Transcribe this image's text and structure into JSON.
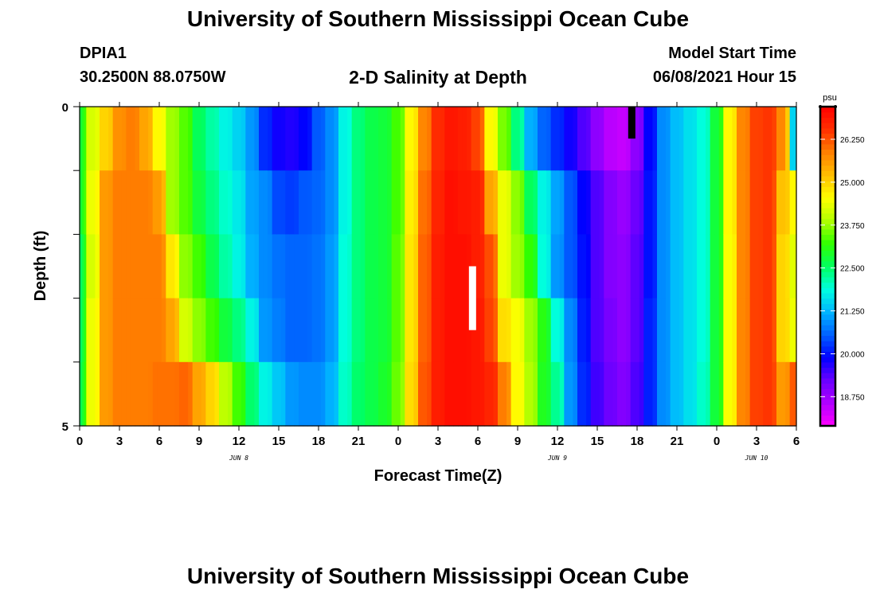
{
  "header": {
    "title": "University of Southern Mississippi Ocean Cube",
    "station": "DPIA1",
    "coords": "30.2500N  88.0750W",
    "chart_title": "2-D Salinity at Depth",
    "model_label": "Model Start Time",
    "model_date": "06/08/2021 Hour 15"
  },
  "footer": {
    "title": "University of Southern Mississippi Ocean Cube"
  },
  "colors": {
    "colormap": [
      "#ff00ff",
      "#b200ff",
      "#6a00ff",
      "#0000ff",
      "#0060ff",
      "#00b4ff",
      "#00ffe0",
      "#00ff60",
      "#30ff00",
      "#b0ff00",
      "#ffff00",
      "#ffc000",
      "#ff8000",
      "#ff3000",
      "#ff0000"
    ],
    "missing_marker": "#ffffff",
    "missing_marker_top": "#000000"
  },
  "chart_data": {
    "type": "heatmap",
    "title": "2-D Salinity at Depth",
    "xlabel": "Forecast Time(Z)",
    "ylabel": "Depth (ft)",
    "x_range": [
      0,
      54
    ],
    "y_range": [
      0,
      5
    ],
    "x_ticks": [
      {
        "pos": 0,
        "label": "0"
      },
      {
        "pos": 3,
        "label": "3"
      },
      {
        "pos": 6,
        "label": "6"
      },
      {
        "pos": 9,
        "label": "9"
      },
      {
        "pos": 12,
        "label": "12"
      },
      {
        "pos": 15,
        "label": "15"
      },
      {
        "pos": 18,
        "label": "18"
      },
      {
        "pos": 21,
        "label": "21"
      },
      {
        "pos": 24,
        "label": "0"
      },
      {
        "pos": 27,
        "label": "3"
      },
      {
        "pos": 30,
        "label": "6"
      },
      {
        "pos": 33,
        "label": "9"
      },
      {
        "pos": 36,
        "label": "12"
      },
      {
        "pos": 39,
        "label": "15"
      },
      {
        "pos": 42,
        "label": "18"
      },
      {
        "pos": 45,
        "label": "21"
      },
      {
        "pos": 48,
        "label": "0"
      },
      {
        "pos": 51,
        "label": "3"
      },
      {
        "pos": 54,
        "label": "6"
      }
    ],
    "date_labels": [
      {
        "pos": 12,
        "label": "JUN 8"
      },
      {
        "pos": 36,
        "label": "JUN 9"
      },
      {
        "pos": 51,
        "label": "JUN 10"
      }
    ],
    "y_ticks": [
      {
        "pos": 0,
        "label": "0"
      },
      {
        "pos": 5,
        "label": "5"
      }
    ],
    "depth_levels": 5,
    "colorbar": {
      "unit": "psu",
      "range": [
        17.9,
        27.2
      ],
      "labels": [
        "26.250",
        "25.000",
        "23.750",
        "22.500",
        "21.250",
        "20.000",
        "18.750"
      ]
    },
    "profiles": [
      {
        "t": 0,
        "v": [
          22.8,
          22.8,
          22.5,
          22.5,
          22.6
        ]
      },
      {
        "t": 1,
        "v": [
          24.2,
          24.4,
          24.2,
          24.4,
          24.4
        ]
      },
      {
        "t": 2,
        "v": [
          25.0,
          25.6,
          25.6,
          25.6,
          25.6
        ]
      },
      {
        "t": 3,
        "v": [
          25.7,
          25.9,
          25.9,
          25.9,
          25.9
        ]
      },
      {
        "t": 4,
        "v": [
          25.9,
          25.9,
          25.9,
          25.9,
          25.9
        ]
      },
      {
        "t": 5,
        "v": [
          25.5,
          25.9,
          25.9,
          25.9,
          25.9
        ]
      },
      {
        "t": 6,
        "v": [
          24.6,
          25.6,
          25.9,
          25.9,
          26.0
        ]
      },
      {
        "t": 7,
        "v": [
          23.8,
          23.8,
          24.8,
          25.5,
          26.0
        ]
      },
      {
        "t": 8,
        "v": [
          23.4,
          23.4,
          23.7,
          24.2,
          26.1
        ]
      },
      {
        "t": 9,
        "v": [
          22.6,
          22.8,
          23.3,
          23.7,
          25.5
        ]
      },
      {
        "t": 10,
        "v": [
          22.2,
          22.4,
          22.7,
          23.3,
          25.0
        ]
      },
      {
        "t": 11,
        "v": [
          21.8,
          22.0,
          22.2,
          22.8,
          24.0
        ]
      },
      {
        "t": 12,
        "v": [
          21.5,
          21.7,
          21.8,
          22.4,
          23.3
        ]
      },
      {
        "t": 13,
        "v": [
          21.0,
          21.1,
          21.2,
          21.8,
          22.5
        ]
      },
      {
        "t": 14,
        "v": [
          20.2,
          20.9,
          20.9,
          21.0,
          21.8
        ]
      },
      {
        "t": 15,
        "v": [
          19.8,
          20.4,
          20.7,
          20.8,
          21.4
        ]
      },
      {
        "t": 16,
        "v": [
          19.7,
          20.3,
          20.6,
          20.6,
          21.0
        ]
      },
      {
        "t": 17,
        "v": [
          19.9,
          20.5,
          20.6,
          20.6,
          20.9
        ]
      },
      {
        "t": 18,
        "v": [
          20.5,
          20.6,
          20.7,
          20.7,
          20.9
        ]
      },
      {
        "t": 19,
        "v": [
          20.9,
          20.9,
          21.0,
          21.0,
          21.2
        ]
      },
      {
        "t": 20,
        "v": [
          21.8,
          21.8,
          21.9,
          21.9,
          22.0
        ]
      },
      {
        "t": 21,
        "v": [
          22.4,
          22.4,
          22.4,
          22.4,
          22.5
        ]
      },
      {
        "t": 22,
        "v": [
          22.7,
          22.7,
          22.7,
          22.7,
          22.7
        ]
      },
      {
        "t": 23,
        "v": [
          22.8,
          22.8,
          22.8,
          22.8,
          22.9
        ]
      },
      {
        "t": 24,
        "v": [
          23.3,
          23.3,
          23.4,
          23.4,
          23.5
        ]
      },
      {
        "t": 25,
        "v": [
          24.6,
          24.7,
          24.8,
          24.8,
          24.9
        ]
      },
      {
        "t": 26,
        "v": [
          25.8,
          26.0,
          26.1,
          26.1,
          26.2
        ]
      },
      {
        "t": 27,
        "v": [
          26.6,
          26.7,
          26.8,
          26.8,
          26.8
        ]
      },
      {
        "t": 28,
        "v": [
          26.9,
          27.0,
          27.0,
          27.0,
          27.0
        ]
      },
      {
        "t": 29,
        "v": [
          26.8,
          26.9,
          27.0,
          27.0,
          27.0
        ]
      },
      {
        "t": 30,
        "v": [
          26.4,
          26.8,
          26.8,
          26.9,
          26.9
        ]
      },
      {
        "t": 31,
        "v": [
          24.6,
          25.5,
          26.3,
          26.4,
          26.7
        ]
      },
      {
        "t": 32,
        "v": [
          23.6,
          24.4,
          24.4,
          24.9,
          25.9
        ]
      },
      {
        "t": 33,
        "v": [
          22.4,
          23.7,
          23.8,
          24.5,
          24.6
        ]
      },
      {
        "t": 34,
        "v": [
          21.2,
          22.6,
          23.2,
          23.8,
          23.9
        ]
      },
      {
        "t": 35,
        "v": [
          20.6,
          21.8,
          21.9,
          23.1,
          23.0
        ]
      },
      {
        "t": 36,
        "v": [
          20.2,
          21.1,
          21.0,
          21.9,
          22.3
        ]
      },
      {
        "t": 37,
        "v": [
          19.8,
          20.5,
          20.5,
          20.9,
          21.0
        ]
      },
      {
        "t": 38,
        "v": [
          19.4,
          19.9,
          20.0,
          20.1,
          20.2
        ]
      },
      {
        "t": 39,
        "v": [
          18.9,
          19.4,
          19.4,
          19.4,
          19.5
        ]
      },
      {
        "t": 40,
        "v": [
          18.5,
          19.0,
          19.0,
          19.1,
          19.2
        ]
      },
      {
        "t": 41,
        "v": [
          18.4,
          18.8,
          18.9,
          18.9,
          19.0
        ]
      },
      {
        "t": 42,
        "v": [
          18.9,
          19.2,
          19.3,
          19.3,
          19.4
        ]
      },
      {
        "t": 43,
        "v": [
          19.9,
          20.0,
          20.0,
          20.1,
          20.1
        ]
      },
      {
        "t": 44,
        "v": [
          20.9,
          20.9,
          20.9,
          20.9,
          20.9
        ]
      },
      {
        "t": 45,
        "v": [
          21.3,
          21.3,
          21.3,
          21.3,
          21.3
        ]
      },
      {
        "t": 46,
        "v": [
          21.6,
          21.6,
          21.6,
          21.6,
          21.6
        ]
      },
      {
        "t": 47,
        "v": [
          21.9,
          21.9,
          21.9,
          21.9,
          22.0
        ]
      },
      {
        "t": 48,
        "v": [
          22.8,
          22.8,
          22.8,
          22.8,
          22.8
        ]
      },
      {
        "t": 49,
        "v": [
          24.6,
          24.6,
          24.5,
          24.5,
          24.5
        ]
      },
      {
        "t": 50,
        "v": [
          25.8,
          25.8,
          25.8,
          25.8,
          25.8
        ]
      },
      {
        "t": 51,
        "v": [
          26.4,
          26.4,
          26.4,
          26.4,
          26.4
        ]
      },
      {
        "t": 52,
        "v": [
          26.5,
          26.5,
          26.5,
          26.5,
          26.5
        ]
      },
      {
        "t": 53,
        "v": [
          25.8,
          25.2,
          25.0,
          25.0,
          25.6
        ]
      },
      {
        "t": 54,
        "v": [
          21.5,
          24.6,
          24.3,
          24.4,
          26.2
        ]
      }
    ],
    "missing_markers": [
      {
        "t": 29.6,
        "depth_start": 2.5,
        "depth_end": 3.5,
        "color": "white"
      },
      {
        "t": 41.6,
        "depth_start": 0,
        "depth_end": 0.5,
        "color": "black"
      }
    ]
  }
}
